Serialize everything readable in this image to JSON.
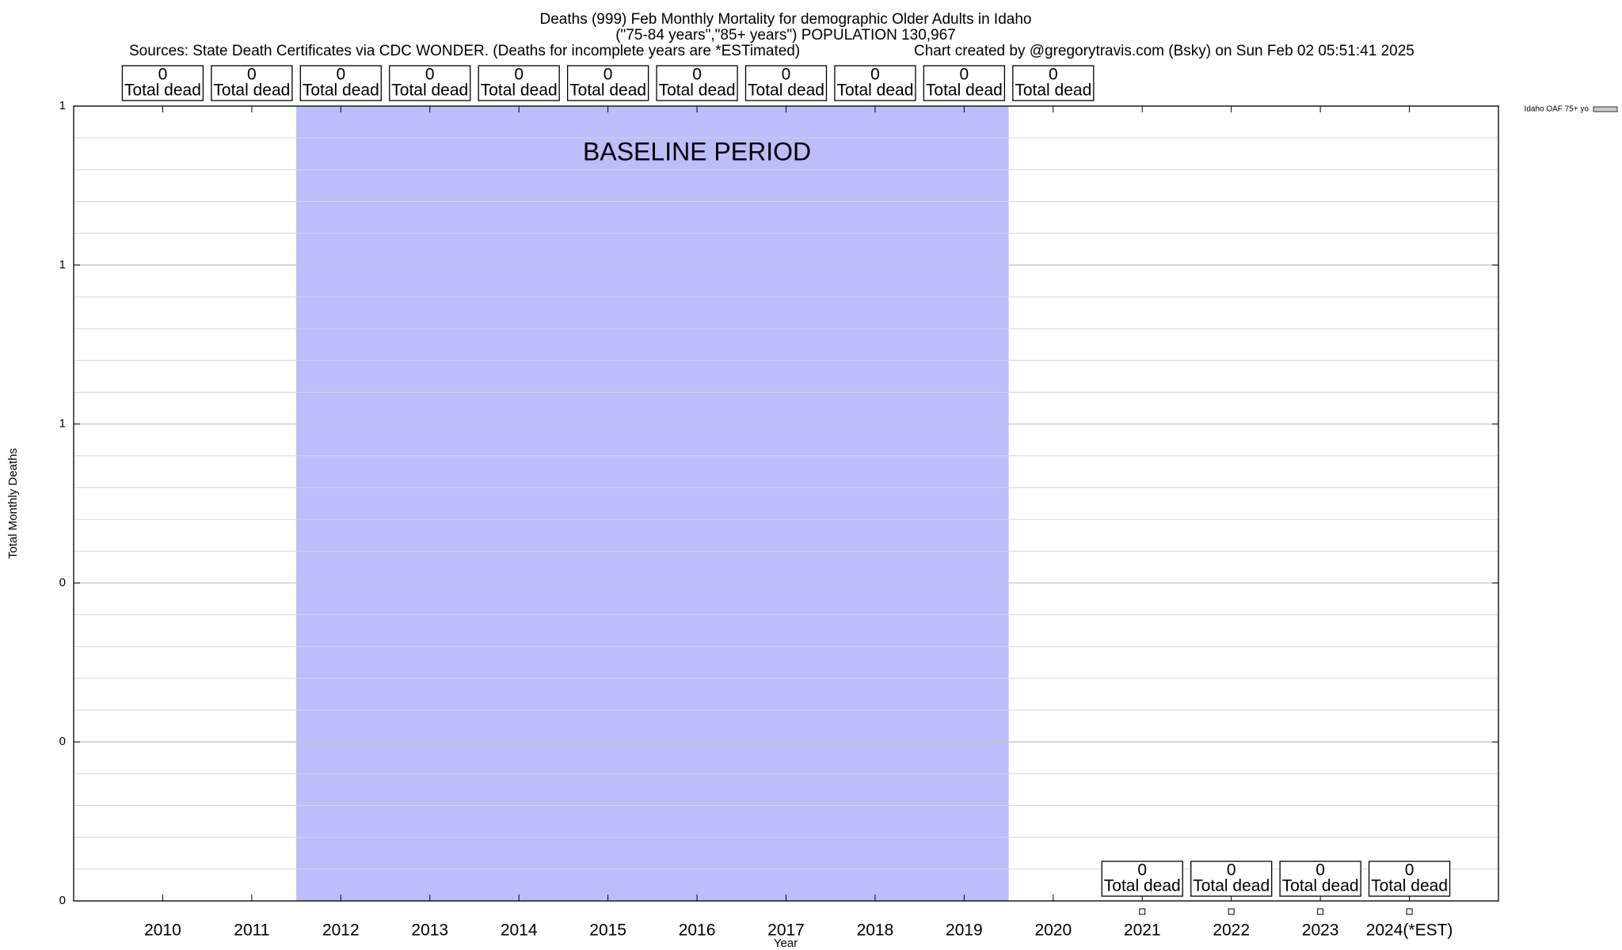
{
  "chart_data": {
    "type": "bar",
    "title": "Deaths (999) Feb Monthly Mortality for demographic Older Adults in Idaho",
    "subtitle": "(\"75-84 years\",\"85+ years\") POPULATION 130,967",
    "source": "Sources: State Death Certificates via CDC WONDER. (Deaths for incomplete years are *ESTimated)",
    "credit": "Chart created by @gregorytravis.com (Bsky) on Sun Feb 02 05:51:41 2025",
    "x_label": "Year",
    "y_label": "Total Monthly Deaths",
    "categories": [
      "2010",
      "2011",
      "2012",
      "2013",
      "2014",
      "2015",
      "2016",
      "2017",
      "2018",
      "2019",
      "2020",
      "2021",
      "2022",
      "2023",
      "2024(*EST)"
    ],
    "series": [
      {
        "name": "Idaho OAF 75+ yo",
        "color": "#cccccc",
        "values": [
          0,
          0,
          0,
          0,
          0,
          0,
          0,
          0,
          0,
          0,
          0,
          0,
          0,
          0,
          0
        ]
      }
    ],
    "value_label_caption": "Total dead",
    "label_position": [
      "top",
      "top",
      "top",
      "top",
      "top",
      "top",
      "top",
      "top",
      "top",
      "top",
      "top",
      "bottom",
      "bottom",
      "bottom",
      "bottom"
    ],
    "baseline_period": {
      "label": "BASELINE PERIOD",
      "start": "2012",
      "end": "2019",
      "color": "#bdbdfb"
    },
    "ylim": [
      0,
      1
    ],
    "yticks": [
      {
        "value": 0,
        "label": "0"
      },
      {
        "value": 0.2,
        "label": "0"
      },
      {
        "value": 0.4,
        "label": "0"
      },
      {
        "value": 0.6,
        "label": "1"
      },
      {
        "value": 0.8,
        "label": "1"
      },
      {
        "value": 1,
        "label": "1"
      }
    ],
    "minor_grid": 5,
    "grid": true,
    "legend": "top-right"
  }
}
